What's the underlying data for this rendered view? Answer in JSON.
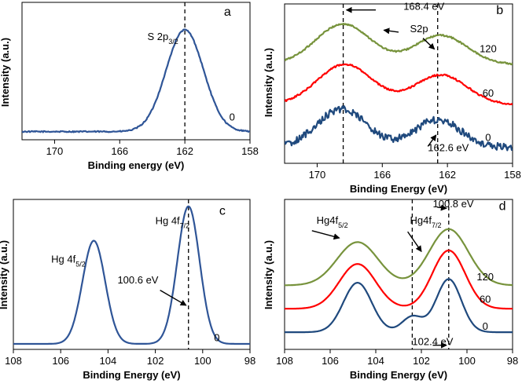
{
  "chart_data": [
    {
      "panel": "a",
      "type": "line",
      "title": "",
      "xlabel": "Binding energy (eV)",
      "ylabel": "Intensity (a.u.)",
      "xlim": [
        172,
        158
      ],
      "x_reversed": true,
      "xticks": [
        170,
        166,
        162,
        158
      ],
      "grid": false,
      "series": [
        {
          "name": "0",
          "color": "#2f5597",
          "peaks": [
            {
              "center": 162.0,
              "height": 1.0,
              "width": 1.15
            }
          ],
          "baseline": 0.03,
          "noise": 0.006
        }
      ],
      "vlines": [
        162.0
      ],
      "annotations": [
        {
          "text": "S 2p",
          "sub": "3/2",
          "x": 164.3,
          "y": 0.93
        },
        {
          "text": "0",
          "x": 159.1,
          "y": 0.14,
          "kind": "series-label"
        },
        {
          "text": "a",
          "x": 159.6,
          "y": 1.17,
          "kind": "panel-label"
        }
      ],
      "ylim": [
        -0.05,
        1.3
      ]
    },
    {
      "panel": "b",
      "type": "line",
      "title": "",
      "xlabel": "Binding Energy (eV)",
      "ylabel": "Intensity (a.u.)",
      "xlim": [
        172,
        158
      ],
      "x_reversed": true,
      "xticks": [
        170,
        166,
        162,
        158
      ],
      "grid": false,
      "series": [
        {
          "name": "120",
          "color": "#77933c",
          "offset": 2.05,
          "peaks": [
            {
              "center": 168.4,
              "height": 1.0,
              "width": 1.7
            },
            {
              "center": 162.4,
              "height": 0.72,
              "width": 1.6
            }
          ],
          "baseline": 0.05,
          "noise": 0.02
        },
        {
          "name": "60",
          "color": "#ff0000",
          "offset": 1.05,
          "peaks": [
            {
              "center": 168.3,
              "height": 1.0,
              "width": 1.7
            },
            {
              "center": 162.4,
              "height": 0.74,
              "width": 1.6
            }
          ],
          "baseline": 0.05,
          "noise": 0.02
        },
        {
          "name": "0",
          "color": "#1f497d",
          "offset": 0.0,
          "peaks": [
            {
              "center": 168.5,
              "height": 0.95,
              "width": 1.5
            },
            {
              "center": 162.6,
              "height": 0.68,
              "width": 1.4
            }
          ],
          "baseline": 0.05,
          "noise": 0.09
        }
      ],
      "vlines": [
        168.4,
        162.6
      ],
      "annotations": [
        {
          "text": "168.4 eV",
          "x": 164.7,
          "y": 3.45
        },
        {
          "text": "S2p",
          "x": 164.3,
          "y": 2.9
        },
        {
          "text": "162.6 eV",
          "x": 163.2,
          "y": -0.05
        },
        {
          "text": "120",
          "x": 159.5,
          "y": 2.4,
          "kind": "series-label"
        },
        {
          "text": "60",
          "x": 159.5,
          "y": 1.3,
          "kind": "series-label"
        },
        {
          "text": "0",
          "x": 159.5,
          "y": 0.2,
          "kind": "series-label"
        },
        {
          "text": "b",
          "x": 159.0,
          "y": 3.35,
          "kind": "panel-label"
        }
      ],
      "ylim": [
        -0.35,
        3.6
      ]
    },
    {
      "panel": "c",
      "type": "line",
      "title": "",
      "xlabel": "Binding Energy (eV)",
      "ylabel": "Intensity (a.u.)",
      "xlim": [
        108,
        98
      ],
      "x_reversed": true,
      "xticks": [
        108,
        106,
        104,
        102,
        100,
        98
      ],
      "grid": false,
      "series": [
        {
          "name": "0",
          "color": "#2f5597",
          "peaks": [
            {
              "center": 104.6,
              "height": 0.75,
              "width": 0.48
            },
            {
              "center": 100.6,
              "height": 1.0,
              "width": 0.47
            }
          ],
          "baseline": 0.02,
          "noise": 0.0
        }
      ],
      "vlines": [
        100.6
      ],
      "annotations": [
        {
          "text": "Hg 4f",
          "sub": "5/2",
          "x": 106.4,
          "y": 0.61
        },
        {
          "text": "Hg 4f",
          "sub": "7/2",
          "x": 102.0,
          "y": 0.89
        },
        {
          "text": "100.6 eV",
          "x": 103.6,
          "y": 0.46
        },
        {
          "text": "0",
          "x": 99.4,
          "y": 0.04,
          "kind": "series-label"
        },
        {
          "text": "c",
          "x": 99.3,
          "y": 0.96,
          "kind": "panel-label"
        }
      ],
      "ylim": [
        -0.02,
        1.07
      ]
    },
    {
      "panel": "d",
      "type": "line",
      "title": "",
      "xlabel": "Binding Energy (eV)",
      "ylabel": "Intensity (a.u.)",
      "xlim": [
        108,
        98
      ],
      "x_reversed": true,
      "xticks": [
        108,
        106,
        104,
        102,
        100,
        98
      ],
      "grid": false,
      "series": [
        {
          "name": "120",
          "color": "#77933c",
          "offset": 0.9,
          "peaks": [
            {
              "center": 104.8,
              "height": 0.83,
              "width": 0.9
            },
            {
              "center": 100.8,
              "height": 1.08,
              "width": 0.85
            }
          ],
          "baseline": 0.05,
          "noise": 0.0
        },
        {
          "name": "60",
          "color": "#ff0000",
          "offset": 0.45,
          "peaks": [
            {
              "center": 104.8,
              "height": 0.86,
              "width": 0.8
            },
            {
              "center": 100.8,
              "height": 1.12,
              "width": 0.72
            }
          ],
          "baseline": 0.05,
          "noise": 0.0
        },
        {
          "name": "0",
          "color": "#1f497d",
          "offset": 0.0,
          "peaks": [
            {
              "center": 104.8,
              "height": 0.95,
              "width": 0.62
            },
            {
              "center": 102.4,
              "height": 0.3,
              "width": 0.45
            },
            {
              "center": 100.8,
              "height": 1.02,
              "width": 0.55
            }
          ],
          "baseline": 0.05,
          "noise": 0.0
        }
      ],
      "vlines": [
        100.8,
        102.4
      ],
      "annotations": [
        {
          "text": "100.8 eV",
          "x": 101.5,
          "y": 2.45
        },
        {
          "text": "Hg4f",
          "sub": "5/2",
          "x": 106.6,
          "y": 2.13
        },
        {
          "text": "Hg4f",
          "sub": "7/2",
          "x": 102.5,
          "y": 2.13
        },
        {
          "text": "102.4 eV",
          "x": 102.4,
          "y": -0.2
        },
        {
          "text": "120",
          "x": 99.2,
          "y": 1.05,
          "kind": "series-label"
        },
        {
          "text": "60",
          "x": 99.2,
          "y": 0.62,
          "kind": "series-label"
        },
        {
          "text": "0",
          "x": 99.2,
          "y": 0.1,
          "kind": "series-label"
        },
        {
          "text": "d",
          "x": 98.6,
          "y": 2.4,
          "kind": "panel-label"
        }
      ],
      "ylim": [
        -0.28,
        2.6
      ]
    }
  ]
}
